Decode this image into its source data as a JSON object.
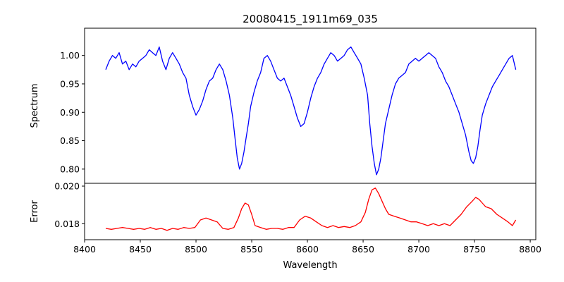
{
  "chart_data": {
    "type": "line",
    "title": "20080415_1911m69_035",
    "xlabel": "Wavelength",
    "xlim": [
      8400,
      8805
    ],
    "xticks": [
      "8400",
      "8450",
      "8500",
      "8550",
      "8600",
      "8650",
      "8700",
      "8750",
      "8800"
    ],
    "panels": [
      {
        "ylabel": "Spectrum",
        "ylim": [
          0.775,
          1.048
        ],
        "yticks": [
          "0.80",
          "0.85",
          "0.90",
          "0.95",
          "1.00"
        ],
        "grid": false,
        "series": [
          {
            "color": "#0000ff",
            "x": [
              8419,
              8422,
              8425,
              8428,
              8431,
              8434,
              8437,
              8440,
              8443,
              8446,
              8449,
              8452,
              8455,
              8458,
              8461,
              8464,
              8467,
              8470,
              8473,
              8476,
              8479,
              8482,
              8485,
              8488,
              8491,
              8494,
              8497,
              8500,
              8503,
              8506,
              8509,
              8512,
              8515,
              8518,
              8521,
              8524,
              8527,
              8530,
              8533,
              8535,
              8537,
              8539,
              8541,
              8543,
              8545,
              8547,
              8549,
              8552,
              8555,
              8558,
              8561,
              8564,
              8567,
              8570,
              8573,
              8576,
              8579,
              8582,
              8585,
              8588,
              8591,
              8594,
              8597,
              8600,
              8603,
              8606,
              8609,
              8612,
              8615,
              8618,
              8621,
              8624,
              8627,
              8630,
              8633,
              8636,
              8639,
              8642,
              8645,
              8648,
              8651,
              8654,
              8656,
              8658,
              8660,
              8662,
              8664,
              8666,
              8668,
              8670,
              8673,
              8676,
              8679,
              8682,
              8685,
              8688,
              8691,
              8694,
              8697,
              8700,
              8703,
              8706,
              8709,
              8712,
              8715,
              8718,
              8721,
              8724,
              8727,
              8730,
              8733,
              8736,
              8739,
              8742,
              8745,
              8747,
              8749,
              8751,
              8753,
              8755,
              8757,
              8760,
              8763,
              8766,
              8769,
              8772,
              8775,
              8778,
              8781,
              8784,
              8787
            ],
            "y": [
              0.975,
              0.99,
              1.0,
              0.995,
              1.005,
              0.985,
              0.99,
              0.975,
              0.985,
              0.98,
              0.99,
              0.995,
              1.0,
              1.01,
              1.005,
              1.0,
              1.015,
              0.99,
              0.975,
              0.995,
              1.005,
              0.995,
              0.985,
              0.97,
              0.96,
              0.93,
              0.91,
              0.895,
              0.905,
              0.92,
              0.94,
              0.955,
              0.96,
              0.975,
              0.985,
              0.975,
              0.955,
              0.93,
              0.89,
              0.855,
              0.82,
              0.8,
              0.81,
              0.83,
              0.855,
              0.88,
              0.91,
              0.935,
              0.955,
              0.97,
              0.995,
              1.0,
              0.99,
              0.975,
              0.96,
              0.955,
              0.96,
              0.945,
              0.93,
              0.91,
              0.89,
              0.875,
              0.88,
              0.9,
              0.925,
              0.945,
              0.96,
              0.97,
              0.985,
              0.995,
              1.005,
              1.0,
              0.99,
              0.995,
              1.0,
              1.01,
              1.015,
              1.005,
              0.995,
              0.985,
              0.96,
              0.93,
              0.88,
              0.84,
              0.81,
              0.79,
              0.8,
              0.82,
              0.85,
              0.88,
              0.905,
              0.93,
              0.95,
              0.96,
              0.965,
              0.97,
              0.985,
              0.99,
              0.995,
              0.99,
              0.995,
              1.0,
              1.005,
              1.0,
              0.995,
              0.98,
              0.97,
              0.955,
              0.945,
              0.93,
              0.915,
              0.9,
              0.88,
              0.86,
              0.83,
              0.815,
              0.81,
              0.82,
              0.84,
              0.87,
              0.895,
              0.915,
              0.93,
              0.945,
              0.955,
              0.965,
              0.975,
              0.985,
              0.995,
              1.0,
              0.975
            ]
          }
        ]
      },
      {
        "ylabel": "Error",
        "ylim": [
          0.01715,
          0.02015
        ],
        "yticks": [
          "0.018",
          "0.020"
        ],
        "grid": false,
        "series": [
          {
            "color": "#ff0000",
            "x": [
              8419,
              8424,
              8429,
              8434,
              8439,
              8444,
              8449,
              8454,
              8459,
              8464,
              8469,
              8474,
              8479,
              8484,
              8489,
              8494,
              8499,
              8504,
              8509,
              8514,
              8519,
              8524,
              8529,
              8534,
              8538,
              8541,
              8544,
              8547,
              8550,
              8553,
              8558,
              8563,
              8568,
              8573,
              8578,
              8583,
              8588,
              8593,
              8598,
              8603,
              8608,
              8613,
              8618,
              8623,
              8628,
              8633,
              8638,
              8643,
              8648,
              8652,
              8655,
              8658,
              8661,
              8664,
              8667,
              8670,
              8673,
              8678,
              8683,
              8688,
              8693,
              8698,
              8703,
              8708,
              8713,
              8718,
              8723,
              8728,
              8733,
              8738,
              8743,
              8748,
              8751,
              8754,
              8757,
              8760,
              8765,
              8770,
              8775,
              8780,
              8784,
              8787
            ],
            "y": [
              0.01775,
              0.0177,
              0.01775,
              0.0178,
              0.01775,
              0.0177,
              0.01775,
              0.0177,
              0.0178,
              0.0177,
              0.01775,
              0.01765,
              0.01775,
              0.0177,
              0.0178,
              0.01775,
              0.0178,
              0.0182,
              0.0183,
              0.0182,
              0.0181,
              0.01775,
              0.0177,
              0.0178,
              0.0183,
              0.0188,
              0.0191,
              0.019,
              0.0185,
              0.0179,
              0.0178,
              0.0177,
              0.01775,
              0.01775,
              0.0177,
              0.0178,
              0.0178,
              0.0182,
              0.0184,
              0.0183,
              0.0181,
              0.0179,
              0.0178,
              0.0179,
              0.0178,
              0.01785,
              0.0178,
              0.0179,
              0.0181,
              0.0186,
              0.0193,
              0.0198,
              0.0199,
              0.0196,
              0.0192,
              0.0188,
              0.0185,
              0.0184,
              0.0183,
              0.0182,
              0.0181,
              0.0181,
              0.018,
              0.0179,
              0.018,
              0.0179,
              0.018,
              0.0179,
              0.0182,
              0.0185,
              0.0189,
              0.0192,
              0.0194,
              0.0193,
              0.0191,
              0.0189,
              0.0188,
              0.0185,
              0.0183,
              0.0181,
              0.0179,
              0.0182
            ]
          }
        ]
      }
    ]
  }
}
